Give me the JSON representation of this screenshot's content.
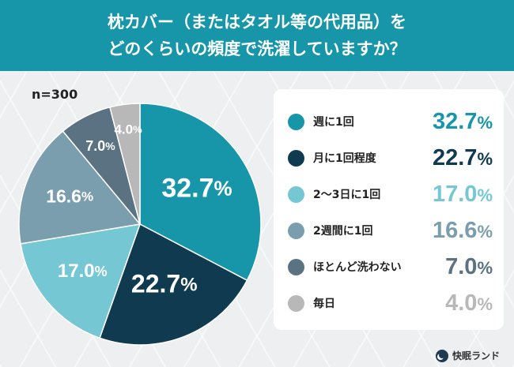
{
  "header": {
    "title_line1": "枕カバー（またはタオル等の代用品）を",
    "title_line2": "どのくらいの頻度で洗濯していますか？"
  },
  "sample_label": "n=300",
  "brand": "快眠ランド",
  "colors": {
    "header_bg": "#1696a8",
    "slices": [
      "#1696a8",
      "#0f3a4f",
      "#74c7d3",
      "#7b9eae",
      "#5a7281",
      "#b8b8b8"
    ]
  },
  "chart_data": {
    "type": "pie",
    "categories": [
      "週に1回",
      "月に1回程度",
      "2〜3日に1回",
      "2週間に1回",
      "ほとんど洗わない",
      "毎日"
    ],
    "values": [
      32.7,
      22.7,
      17.0,
      16.6,
      7.0,
      4.0
    ],
    "value_labels": [
      "32.7",
      "22.7",
      "17.0",
      "16.6",
      "7.0",
      "4.0"
    ],
    "unit": "%",
    "start": "12 o'clock, clockwise",
    "legend_position": "right"
  }
}
